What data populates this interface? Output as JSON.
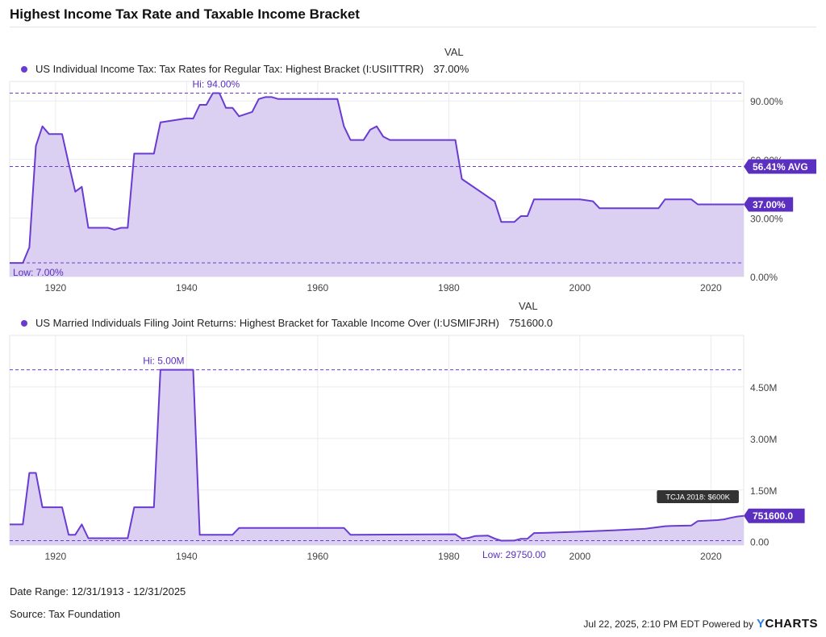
{
  "page": {
    "title": "Highest Income Tax Rate and Taxable Income Bracket",
    "date_range": "Date Range: 12/31/1913 - 12/31/2025",
    "source": "Source: Tax Foundation",
    "timestamp": "Jul 22, 2025, 2:10 PM EDT Powered by",
    "brand_y": "Y",
    "brand_rest": "CHARTS"
  },
  "colors": {
    "line": "#6a3bd1",
    "fill": "#d9cdf1",
    "grid": "#ececec",
    "label": "#5b2fc0"
  },
  "chart_data": [
    {
      "type": "area",
      "val_header": "VAL",
      "series": [
        {
          "name": "US Individual Income Tax: Tax Rates for Regular Tax: Highest Bracket (I:USIITTRR)",
          "last_value_label": "37.00%",
          "points": [
            [
              1913,
              7
            ],
            [
              1915,
              7
            ],
            [
              1916,
              15
            ],
            [
              1917,
              67
            ],
            [
              1918,
              77
            ],
            [
              1919,
              73
            ],
            [
              1921,
              73
            ],
            [
              1922,
              58
            ],
            [
              1923,
              43.5
            ],
            [
              1924,
              46
            ],
            [
              1925,
              25
            ],
            [
              1928,
              25
            ],
            [
              1929,
              24
            ],
            [
              1930,
              25
            ],
            [
              1931,
              25
            ],
            [
              1932,
              63
            ],
            [
              1935,
              63
            ],
            [
              1936,
              79
            ],
            [
              1940,
              81.1
            ],
            [
              1941,
              81
            ],
            [
              1942,
              88
            ],
            [
              1943,
              88
            ],
            [
              1944,
              94
            ],
            [
              1945,
              94
            ],
            [
              1946,
              86.45
            ],
            [
              1947,
              86.45
            ],
            [
              1948,
              82.13
            ],
            [
              1950,
              84.36
            ],
            [
              1951,
              91
            ],
            [
              1952,
              92
            ],
            [
              1953,
              92
            ],
            [
              1954,
              91
            ],
            [
              1963,
              91
            ],
            [
              1964,
              77
            ],
            [
              1965,
              70
            ],
            [
              1967,
              70
            ],
            [
              1968,
              75.25
            ],
            [
              1969,
              77
            ],
            [
              1970,
              71.75
            ],
            [
              1971,
              70
            ],
            [
              1981,
              70
            ],
            [
              1982,
              50
            ],
            [
              1987,
              38.5
            ],
            [
              1988,
              28
            ],
            [
              1990,
              28
            ],
            [
              1991,
              31
            ],
            [
              1992,
              31
            ],
            [
              1993,
              39.6
            ],
            [
              2000,
              39.6
            ],
            [
              2001,
              39.1
            ],
            [
              2002,
              38.6
            ],
            [
              2003,
              35
            ],
            [
              2012,
              35
            ],
            [
              2013,
              39.6
            ],
            [
              2017,
              39.6
            ],
            [
              2018,
              37
            ],
            [
              2025,
              37
            ]
          ]
        }
      ],
      "xlim": [
        1913,
        2025
      ],
      "ylim": [
        0,
        100
      ],
      "x_ticks": [
        "1920",
        "1940",
        "1960",
        "1980",
        "2000",
        "2020"
      ],
      "y_ticks": [
        "0.00%",
        "30.00%",
        "60.00%",
        "90.00%"
      ],
      "annotations": {
        "hi": "Hi: 94.00%",
        "low": "Low: 7.00%",
        "avg": "56.41% AVG",
        "hi_value": 94,
        "low_value": 7,
        "avg_value": 56.41
      }
    },
    {
      "type": "area",
      "val_header": "VAL",
      "series": [
        {
          "name": "US Married Individuals Filing Joint Returns: Highest Bracket for Taxable Income Over (I:USMIFJRH)",
          "last_value_label": "751600.0",
          "points": [
            [
              1913,
              500000
            ],
            [
              1915,
              500000
            ],
            [
              1916,
              2000000
            ],
            [
              1917,
              2000000
            ],
            [
              1918,
              1000000
            ],
            [
              1921,
              1000000
            ],
            [
              1922,
              200000
            ],
            [
              1923,
              200000
            ],
            [
              1924,
              500000
            ],
            [
              1925,
              100000
            ],
            [
              1931,
              100000
            ],
            [
              1932,
              1000000
            ],
            [
              1935,
              1000000
            ],
            [
              1936,
              5000000
            ],
            [
              1941,
              5000000
            ],
            [
              1942,
              200000
            ],
            [
              1947,
              200000
            ],
            [
              1948,
              400000
            ],
            [
              1964,
              400000
            ],
            [
              1965,
              200000
            ],
            [
              1981,
              215400
            ],
            [
              1982,
              85600
            ],
            [
              1983,
              109400
            ],
            [
              1984,
              162400
            ],
            [
              1986,
              175250
            ],
            [
              1987,
              90000
            ],
            [
              1988,
              29750
            ],
            [
              1990,
              32450
            ],
            [
              1991,
              82150
            ],
            [
              1992,
              86500
            ],
            [
              1993,
              250000
            ],
            [
              1995,
              256500
            ],
            [
              2000,
              288350
            ],
            [
              2005,
              326450
            ],
            [
              2010,
              373650
            ],
            [
              2013,
              450000
            ],
            [
              2014,
              457600
            ],
            [
              2017,
              470700
            ],
            [
              2018,
              600000
            ],
            [
              2021,
              628300
            ],
            [
              2022,
              647850
            ],
            [
              2023,
              693750
            ],
            [
              2024,
              731200
            ],
            [
              2025,
              751600
            ]
          ]
        }
      ],
      "xlim": [
        1913,
        2025
      ],
      "ylim": [
        -100000,
        6000000
      ],
      "x_ticks": [
        "1920",
        "1940",
        "1960",
        "1980",
        "2000",
        "2020"
      ],
      "y_ticks": [
        "0.00",
        "1.50M",
        "3.00M",
        "4.50M"
      ],
      "annotations": {
        "hi": "Hi: 5.00M",
        "low": "Low: 29750.00",
        "tooltip": "TCJA 2018: $600K",
        "hi_value": 5000000,
        "low_value": 29750,
        "tooltip_x": 2018
      }
    }
  ]
}
